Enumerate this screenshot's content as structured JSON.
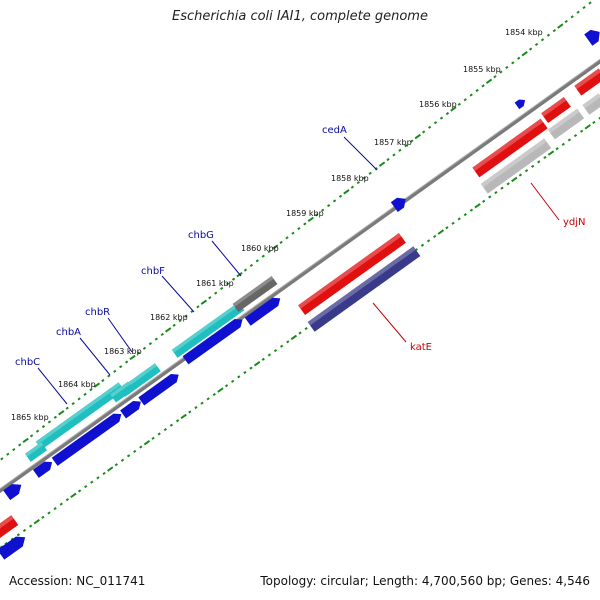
{
  "title": "Escherichia coli IAI1, complete genome",
  "footer": {
    "accession": "Accession: NC_011741",
    "summary": "Topology: circular; Length: 4,700,560 bp; Genes: 4,546"
  },
  "colors": {
    "backbone": "#7a7a7a",
    "tick_dots": "#1a8a1a",
    "gene_blue": "#1010d0",
    "gene_cyan": "#1fbfbf",
    "gene_red": "#e01010",
    "gene_grey_light": "#b8b8b8",
    "gene_grey_dark": "#666666",
    "gene_navy": "#3a3a8a",
    "label_blue": "#0a0aa0",
    "label_red": "#cc0000"
  },
  "ticks": [
    "1854 kbp",
    "1855 kbp",
    "1856 kbp",
    "1857 kbp",
    "1858 kbp",
    "1859 kbp",
    "1860 kbp",
    "1861 kbp",
    "1862 kbp",
    "1863 kbp",
    "1864 kbp",
    "1865 kbp"
  ],
  "gene_labels": {
    "cedA": "cedA",
    "chbG": "chbG",
    "chbF": "chbF",
    "chbR": "chbR",
    "chbA": "chbA",
    "chbC": "chbC",
    "katE": "katE",
    "ydjN": "ydjN"
  }
}
